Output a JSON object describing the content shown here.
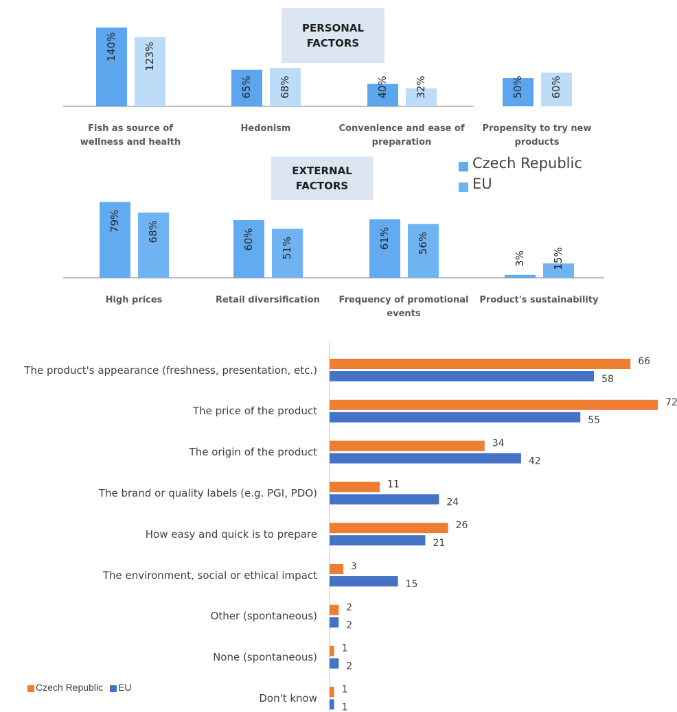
{
  "chart_data": [
    {
      "type": "bar",
      "title": "PERSONAL FACTORS",
      "categories": [
        "Fish as source of wellness and health",
        "Hedonism",
        "Convenience and ease of preparation",
        "Propensity to try new products"
      ],
      "series": [
        {
          "name": "Czech Republic",
          "color": "#5ba6ef",
          "values": [
            140,
            65,
            40,
            50
          ],
          "value_labels": [
            "140%",
            "65%",
            "40%",
            "50%"
          ]
        },
        {
          "name": "EU",
          "color": "#bddcf8",
          "values": [
            123,
            68,
            32,
            60
          ],
          "value_labels": [
            "123%",
            "68%",
            "32%",
            "60%"
          ]
        }
      ]
    },
    {
      "type": "bar",
      "title": "EXTERNAL FACTORS",
      "categories": [
        "High prices",
        "Retail diversification",
        "Frequency of promotional events",
        "Product's sustainability"
      ],
      "series": [
        {
          "name": "Czech Republic",
          "color": "#62abf0",
          "values": [
            79,
            60,
            61,
            3
          ],
          "value_labels": [
            "79%",
            "60%",
            "61%",
            "3%"
          ]
        },
        {
          "name": "EU",
          "color": "#6fb3f2",
          "values": [
            68,
            51,
            56,
            15
          ],
          "value_labels": [
            "68%",
            "51%",
            "56%",
            "15%"
          ]
        }
      ],
      "legend": "right"
    },
    {
      "type": "hbar",
      "categories": [
        "The product's appearance (freshness, presentation, etc.)",
        "The price of the product",
        "The origin of the product",
        "The brand or quality labels (e.g. PGI, PDO)",
        "How easy and quick is to prepare",
        "The environment, social or ethical impact",
        "Other (spontaneous)",
        "None (spontaneous)",
        "Don't know"
      ],
      "series": [
        {
          "name": "Czech Republic",
          "color": "#ed7d31",
          "values": [
            66,
            72,
            34,
            11,
            26,
            3,
            2,
            1,
            1
          ]
        },
        {
          "name": "EU",
          "color": "#4472c4",
          "values": [
            58,
            55,
            42,
            24,
            21,
            15,
            2,
            2,
            1
          ]
        }
      ],
      "xlim": [
        0,
        75
      ],
      "legend": "bottom-left"
    }
  ]
}
